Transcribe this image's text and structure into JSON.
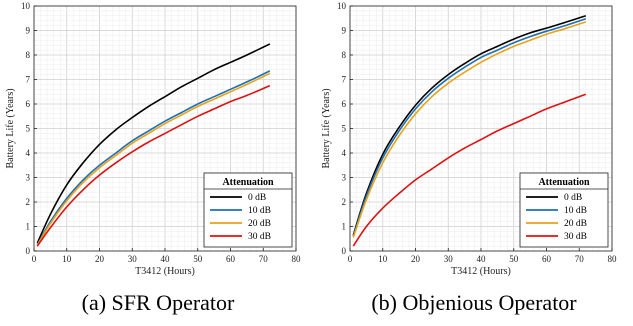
{
  "captions": [
    "(a) SFR Operator",
    "(b) Objenious Operator"
  ],
  "chart_data": [
    {
      "type": "line",
      "xlabel": "T3412 (Hours)",
      "ylabel": "Battery Life (Years)",
      "xlim": [
        0,
        80
      ],
      "ylim": [
        0,
        10
      ],
      "xticks": [
        0,
        10,
        20,
        30,
        40,
        50,
        60,
        70,
        80
      ],
      "yticks": [
        0,
        1,
        2,
        3,
        4,
        5,
        6,
        7,
        8,
        9,
        10
      ],
      "grid": true,
      "legend": {
        "title": "Attenuation",
        "position": "lower-right"
      },
      "series": [
        {
          "name": "0 dB",
          "color": "#000000",
          "points": [
            [
              1,
              0.32
            ],
            [
              5,
              1.5
            ],
            [
              10,
              2.7
            ],
            [
              15,
              3.6
            ],
            [
              20,
              4.35
            ],
            [
              25,
              4.95
            ],
            [
              30,
              5.45
            ],
            [
              35,
              5.9
            ],
            [
              40,
              6.3
            ],
            [
              45,
              6.7
            ],
            [
              50,
              7.05
            ],
            [
              55,
              7.4
            ],
            [
              60,
              7.7
            ],
            [
              65,
              8.0
            ],
            [
              72,
              8.45
            ]
          ]
        },
        {
          "name": "10 dB",
          "color": "#1f6fb4",
          "points": [
            [
              1,
              0.25
            ],
            [
              5,
              1.2
            ],
            [
              10,
              2.15
            ],
            [
              15,
              2.9
            ],
            [
              20,
              3.5
            ],
            [
              25,
              4.0
            ],
            [
              30,
              4.5
            ],
            [
              35,
              4.9
            ],
            [
              40,
              5.3
            ],
            [
              45,
              5.65
            ],
            [
              50,
              6.0
            ],
            [
              55,
              6.3
            ],
            [
              60,
              6.6
            ],
            [
              65,
              6.9
            ],
            [
              72,
              7.35
            ]
          ]
        },
        {
          "name": "20 dB",
          "color": "#e8a317",
          "points": [
            [
              1,
              0.23
            ],
            [
              5,
              1.12
            ],
            [
              10,
              2.05
            ],
            [
              15,
              2.8
            ],
            [
              20,
              3.4
            ],
            [
              25,
              3.9
            ],
            [
              30,
              4.4
            ],
            [
              35,
              4.8
            ],
            [
              40,
              5.2
            ],
            [
              45,
              5.55
            ],
            [
              50,
              5.9
            ],
            [
              55,
              6.2
            ],
            [
              60,
              6.5
            ],
            [
              65,
              6.8
            ],
            [
              72,
              7.25
            ]
          ]
        },
        {
          "name": "30 dB",
          "color": "#e01010",
          "points": [
            [
              1,
              0.2
            ],
            [
              5,
              0.95
            ],
            [
              10,
              1.8
            ],
            [
              15,
              2.5
            ],
            [
              20,
              3.1
            ],
            [
              25,
              3.6
            ],
            [
              30,
              4.05
            ],
            [
              35,
              4.45
            ],
            [
              40,
              4.8
            ],
            [
              45,
              5.15
            ],
            [
              50,
              5.5
            ],
            [
              55,
              5.8
            ],
            [
              60,
              6.1
            ],
            [
              65,
              6.35
            ],
            [
              72,
              6.75
            ]
          ]
        }
      ]
    },
    {
      "type": "line",
      "xlabel": "T3412 (Hours)",
      "ylabel": "Battery Life (Years)",
      "xlim": [
        0,
        80
      ],
      "ylim": [
        0,
        10
      ],
      "xticks": [
        0,
        10,
        20,
        30,
        40,
        50,
        60,
        70,
        80
      ],
      "yticks": [
        0,
        1,
        2,
        3,
        4,
        5,
        6,
        7,
        8,
        9,
        10
      ],
      "grid": true,
      "legend": {
        "title": "Attenuation",
        "position": "lower-right"
      },
      "series": [
        {
          "name": "0 dB",
          "color": "#000000",
          "points": [
            [
              1,
              0.65
            ],
            [
              5,
              2.35
            ],
            [
              10,
              3.95
            ],
            [
              15,
              5.05
            ],
            [
              20,
              5.95
            ],
            [
              25,
              6.65
            ],
            [
              30,
              7.2
            ],
            [
              35,
              7.65
            ],
            [
              40,
              8.05
            ],
            [
              45,
              8.35
            ],
            [
              50,
              8.65
            ],
            [
              55,
              8.9
            ],
            [
              60,
              9.1
            ],
            [
              65,
              9.3
            ],
            [
              72,
              9.6
            ]
          ]
        },
        {
          "name": "10 dB",
          "color": "#1f6fb4",
          "points": [
            [
              1,
              0.6
            ],
            [
              5,
              2.25
            ],
            [
              10,
              3.8
            ],
            [
              15,
              4.9
            ],
            [
              20,
              5.8
            ],
            [
              25,
              6.5
            ],
            [
              30,
              7.05
            ],
            [
              35,
              7.5
            ],
            [
              40,
              7.9
            ],
            [
              45,
              8.2
            ],
            [
              50,
              8.5
            ],
            [
              55,
              8.75
            ],
            [
              60,
              8.97
            ],
            [
              65,
              9.17
            ],
            [
              72,
              9.48
            ]
          ]
        },
        {
          "name": "20 dB",
          "color": "#e8a317",
          "points": [
            [
              1,
              0.55
            ],
            [
              5,
              2.1
            ],
            [
              10,
              3.6
            ],
            [
              15,
              4.7
            ],
            [
              20,
              5.6
            ],
            [
              25,
              6.3
            ],
            [
              30,
              6.85
            ],
            [
              35,
              7.3
            ],
            [
              40,
              7.7
            ],
            [
              45,
              8.05
            ],
            [
              50,
              8.35
            ],
            [
              55,
              8.6
            ],
            [
              60,
              8.85
            ],
            [
              65,
              9.05
            ],
            [
              72,
              9.35
            ]
          ]
        },
        {
          "name": "30 dB",
          "color": "#e01010",
          "points": [
            [
              1,
              0.2
            ],
            [
              5,
              1.0
            ],
            [
              10,
              1.75
            ],
            [
              15,
              2.35
            ],
            [
              20,
              2.9
            ],
            [
              25,
              3.35
            ],
            [
              30,
              3.8
            ],
            [
              35,
              4.2
            ],
            [
              40,
              4.55
            ],
            [
              45,
              4.9
            ],
            [
              50,
              5.2
            ],
            [
              55,
              5.5
            ],
            [
              60,
              5.8
            ],
            [
              65,
              6.05
            ],
            [
              72,
              6.4
            ]
          ]
        }
      ]
    }
  ]
}
